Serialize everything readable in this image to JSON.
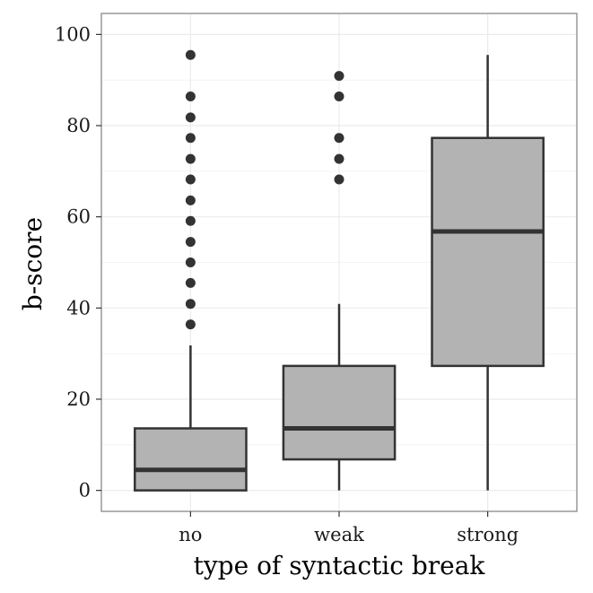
{
  "chart_data": {
    "type": "boxplot",
    "xlabel": "type of syntactic break",
    "ylabel": "b-score",
    "ylim": [
      -4.6,
      104.6
    ],
    "yticks": [
      0,
      20,
      40,
      60,
      80,
      100
    ],
    "categories": [
      "no",
      "weak",
      "strong"
    ],
    "grid": true,
    "legend": "none",
    "boxes": [
      {
        "category": "no",
        "whisker_low": 0,
        "q1": 0,
        "median": 4.5,
        "q3": 13.6,
        "whisker_high": 31.8,
        "outliers": [
          36.4,
          40.9,
          45.5,
          50.0,
          54.5,
          59.1,
          63.6,
          68.2,
          72.7,
          77.3,
          81.8,
          86.4,
          95.5
        ]
      },
      {
        "category": "weak",
        "whisker_low": 0,
        "q1": 6.8,
        "median": 13.6,
        "q3": 27.3,
        "whisker_high": 40.9,
        "outliers": [
          68.2,
          72.7,
          77.3,
          86.4,
          90.9
        ]
      },
      {
        "category": "strong",
        "whisker_low": 0,
        "q1": 27.3,
        "median": 56.8,
        "q3": 77.3,
        "whisker_high": 95.5,
        "outliers": []
      }
    ]
  },
  "colors": {
    "box_fill": "#b3b3b3",
    "box_stroke": "#333333",
    "median": "#333333",
    "outlier": "#333333",
    "grid": "#ebebeb",
    "panel_border": "#7f7f7f"
  }
}
